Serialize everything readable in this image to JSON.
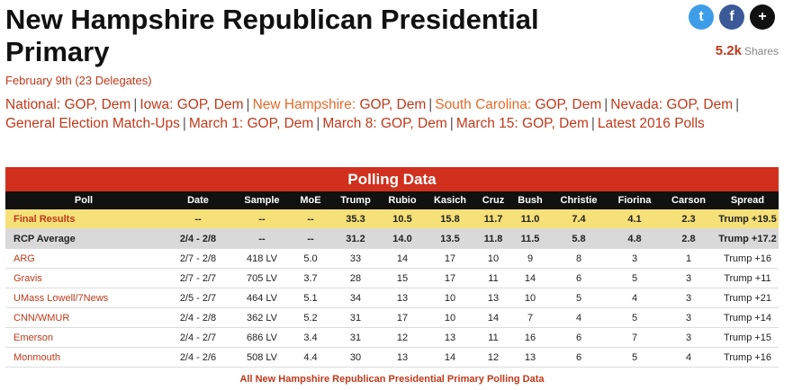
{
  "title": "New Hampshire Republican Presidential Primary",
  "date": "February 9th",
  "delegates": "(23 Delegates)",
  "social": {
    "twitter": "t",
    "facebook": "f",
    "more": "+"
  },
  "shares": {
    "count": "5.2k",
    "label": "Shares"
  },
  "nav": {
    "national_label": "National:",
    "national_gop": "GOP",
    "national_dem": "Dem",
    "iowa_label": "Iowa:",
    "iowa_gop": "GOP",
    "iowa_dem": "Dem",
    "nh_label": "New Hampshire:",
    "nh_gop": "GOP",
    "nh_dem": "Dem",
    "sc_label": "South Carolina:",
    "sc_gop": "GOP",
    "sc_dem": "Dem",
    "nv_label": "Nevada:",
    "nv_gop": "GOP",
    "nv_dem": "Dem",
    "general": "General Election Match-Ups",
    "m1_label": "March 1:",
    "m1_gop": "GOP",
    "m1_dem": "Dem",
    "m8_label": "March 8:",
    "m8_gop": "GOP",
    "m8_dem": "Dem",
    "m15_label": "March 15:",
    "m15_gop": "GOP",
    "m15_dem": "Dem",
    "latest": "Latest 2016 Polls"
  },
  "table": {
    "caption": "Polling Data",
    "headers": [
      "Poll",
      "Date",
      "Sample",
      "MoE",
      "Trump",
      "Rubio",
      "Kasich",
      "Cruz",
      "Bush",
      "Christie",
      "Fiorina",
      "Carson",
      "Spread"
    ],
    "rows": [
      [
        "Final Results",
        "--",
        "--",
        "--",
        "35.3",
        "10.5",
        "15.8",
        "11.7",
        "11.0",
        "7.4",
        "4.1",
        "2.3",
        "Trump +19.5"
      ],
      [
        "RCP Average",
        "2/4 - 2/8",
        "--",
        "--",
        "31.2",
        "14.0",
        "13.5",
        "11.8",
        "11.5",
        "5.8",
        "4.8",
        "2.8",
        "Trump +17.2"
      ],
      [
        "ARG",
        "2/7 - 2/8",
        "418 LV",
        "5.0",
        "33",
        "14",
        "17",
        "10",
        "9",
        "8",
        "3",
        "1",
        "Trump +16"
      ],
      [
        "Gravis",
        "2/7 - 2/7",
        "705 LV",
        "3.7",
        "28",
        "15",
        "17",
        "11",
        "14",
        "6",
        "5",
        "3",
        "Trump +11"
      ],
      [
        "UMass Lowell/7News",
        "2/5 - 2/7",
        "464 LV",
        "5.1",
        "34",
        "13",
        "10",
        "13",
        "10",
        "5",
        "4",
        "3",
        "Trump +21"
      ],
      [
        "CNN/WMUR",
        "2/4 - 2/8",
        "362 LV",
        "5.2",
        "31",
        "17",
        "10",
        "14",
        "7",
        "4",
        "5",
        "3",
        "Trump +14"
      ],
      [
        "Emerson",
        "2/4 - 2/7",
        "686 LV",
        "3.4",
        "31",
        "12",
        "13",
        "11",
        "16",
        "6",
        "7",
        "3",
        "Trump +15"
      ],
      [
        "Monmouth",
        "2/4 - 2/6",
        "508 LV",
        "4.4",
        "30",
        "13",
        "14",
        "12",
        "13",
        "6",
        "5",
        "4",
        "Trump +16"
      ]
    ],
    "footer": "All New Hampshire Republican Presidential Primary Polling Data"
  }
}
